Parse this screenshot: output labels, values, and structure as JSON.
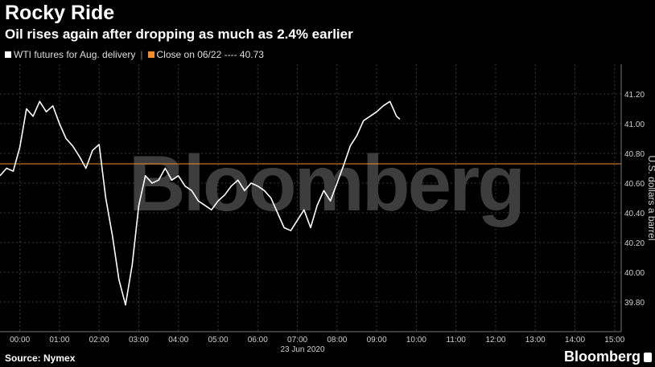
{
  "header": {
    "title": "Rocky Ride",
    "subtitle": "Oil rises again after dropping as much as 2.4% earlier"
  },
  "footer": {
    "source": "Source: Nymex",
    "brand": "Bloomberg"
  },
  "watermark": "Bloomberg",
  "colors": {
    "background": "#000000",
    "series": "#ffffff",
    "reference": "#f28c28",
    "grid": "#3a3a3a"
  },
  "chart_data": {
    "type": "line",
    "ylabel": "U.S. dollars a barrel",
    "xlabel": "23 Jun 2020",
    "ylim": [
      39.6,
      41.4
    ],
    "yticks": [
      "39.80",
      "40.00",
      "40.20",
      "40.40",
      "40.60",
      "40.80",
      "41.00",
      "41.20"
    ],
    "xlim": [
      "23:30",
      "15:10"
    ],
    "xticks": [
      "00:00",
      "01:00",
      "02:00",
      "03:00",
      "04:00",
      "05:00",
      "06:00",
      "07:00",
      "08:00",
      "09:00",
      "10:00",
      "11:00",
      "12:00",
      "13:00",
      "14:00",
      "15:00"
    ],
    "grid": true,
    "legend_position": "top-left",
    "legend": [
      {
        "label": "WTI futures for Aug. delivery",
        "color": "#ffffff"
      },
      {
        "label": "Close on 06/22 ---- 40.73",
        "color": "#f28c28"
      }
    ],
    "reference_line": {
      "value": 40.73
    },
    "series": [
      {
        "name": "WTI futures for Aug. delivery",
        "x": [
          "23:30",
          "23:40",
          "23:50",
          "00:00",
          "00:10",
          "00:20",
          "00:30",
          "00:40",
          "00:50",
          "01:00",
          "01:10",
          "01:20",
          "01:30",
          "01:40",
          "01:50",
          "02:00",
          "02:10",
          "02:20",
          "02:30",
          "02:40",
          "02:50",
          "03:00",
          "03:10",
          "03:20",
          "03:30",
          "03:40",
          "03:50",
          "04:00",
          "04:10",
          "04:20",
          "04:30",
          "04:40",
          "04:50",
          "05:00",
          "05:10",
          "05:20",
          "05:30",
          "05:40",
          "05:50",
          "06:00",
          "06:10",
          "06:20",
          "06:30",
          "06:40",
          "06:50",
          "07:00",
          "07:10",
          "07:20",
          "07:30",
          "07:40",
          "07:50",
          "08:00",
          "08:10",
          "08:20",
          "08:30",
          "08:40",
          "08:50",
          "09:00",
          "09:10",
          "09:20",
          "09:30",
          "09:35"
        ],
        "y": [
          40.65,
          40.7,
          40.68,
          40.84,
          41.1,
          41.05,
          41.15,
          41.08,
          41.12,
          41.0,
          40.9,
          40.85,
          40.78,
          40.7,
          40.82,
          40.86,
          40.5,
          40.25,
          39.95,
          39.78,
          40.05,
          40.45,
          40.65,
          40.6,
          40.62,
          40.7,
          40.62,
          40.65,
          40.58,
          40.55,
          40.48,
          40.45,
          40.42,
          40.48,
          40.52,
          40.58,
          40.62,
          40.55,
          40.6,
          40.58,
          40.55,
          40.5,
          40.4,
          40.3,
          40.28,
          40.35,
          40.42,
          40.3,
          40.45,
          40.55,
          40.48,
          40.6,
          40.72,
          40.85,
          40.92,
          41.02,
          41.05,
          41.08,
          41.12,
          41.15,
          41.05,
          41.03
        ]
      }
    ]
  }
}
